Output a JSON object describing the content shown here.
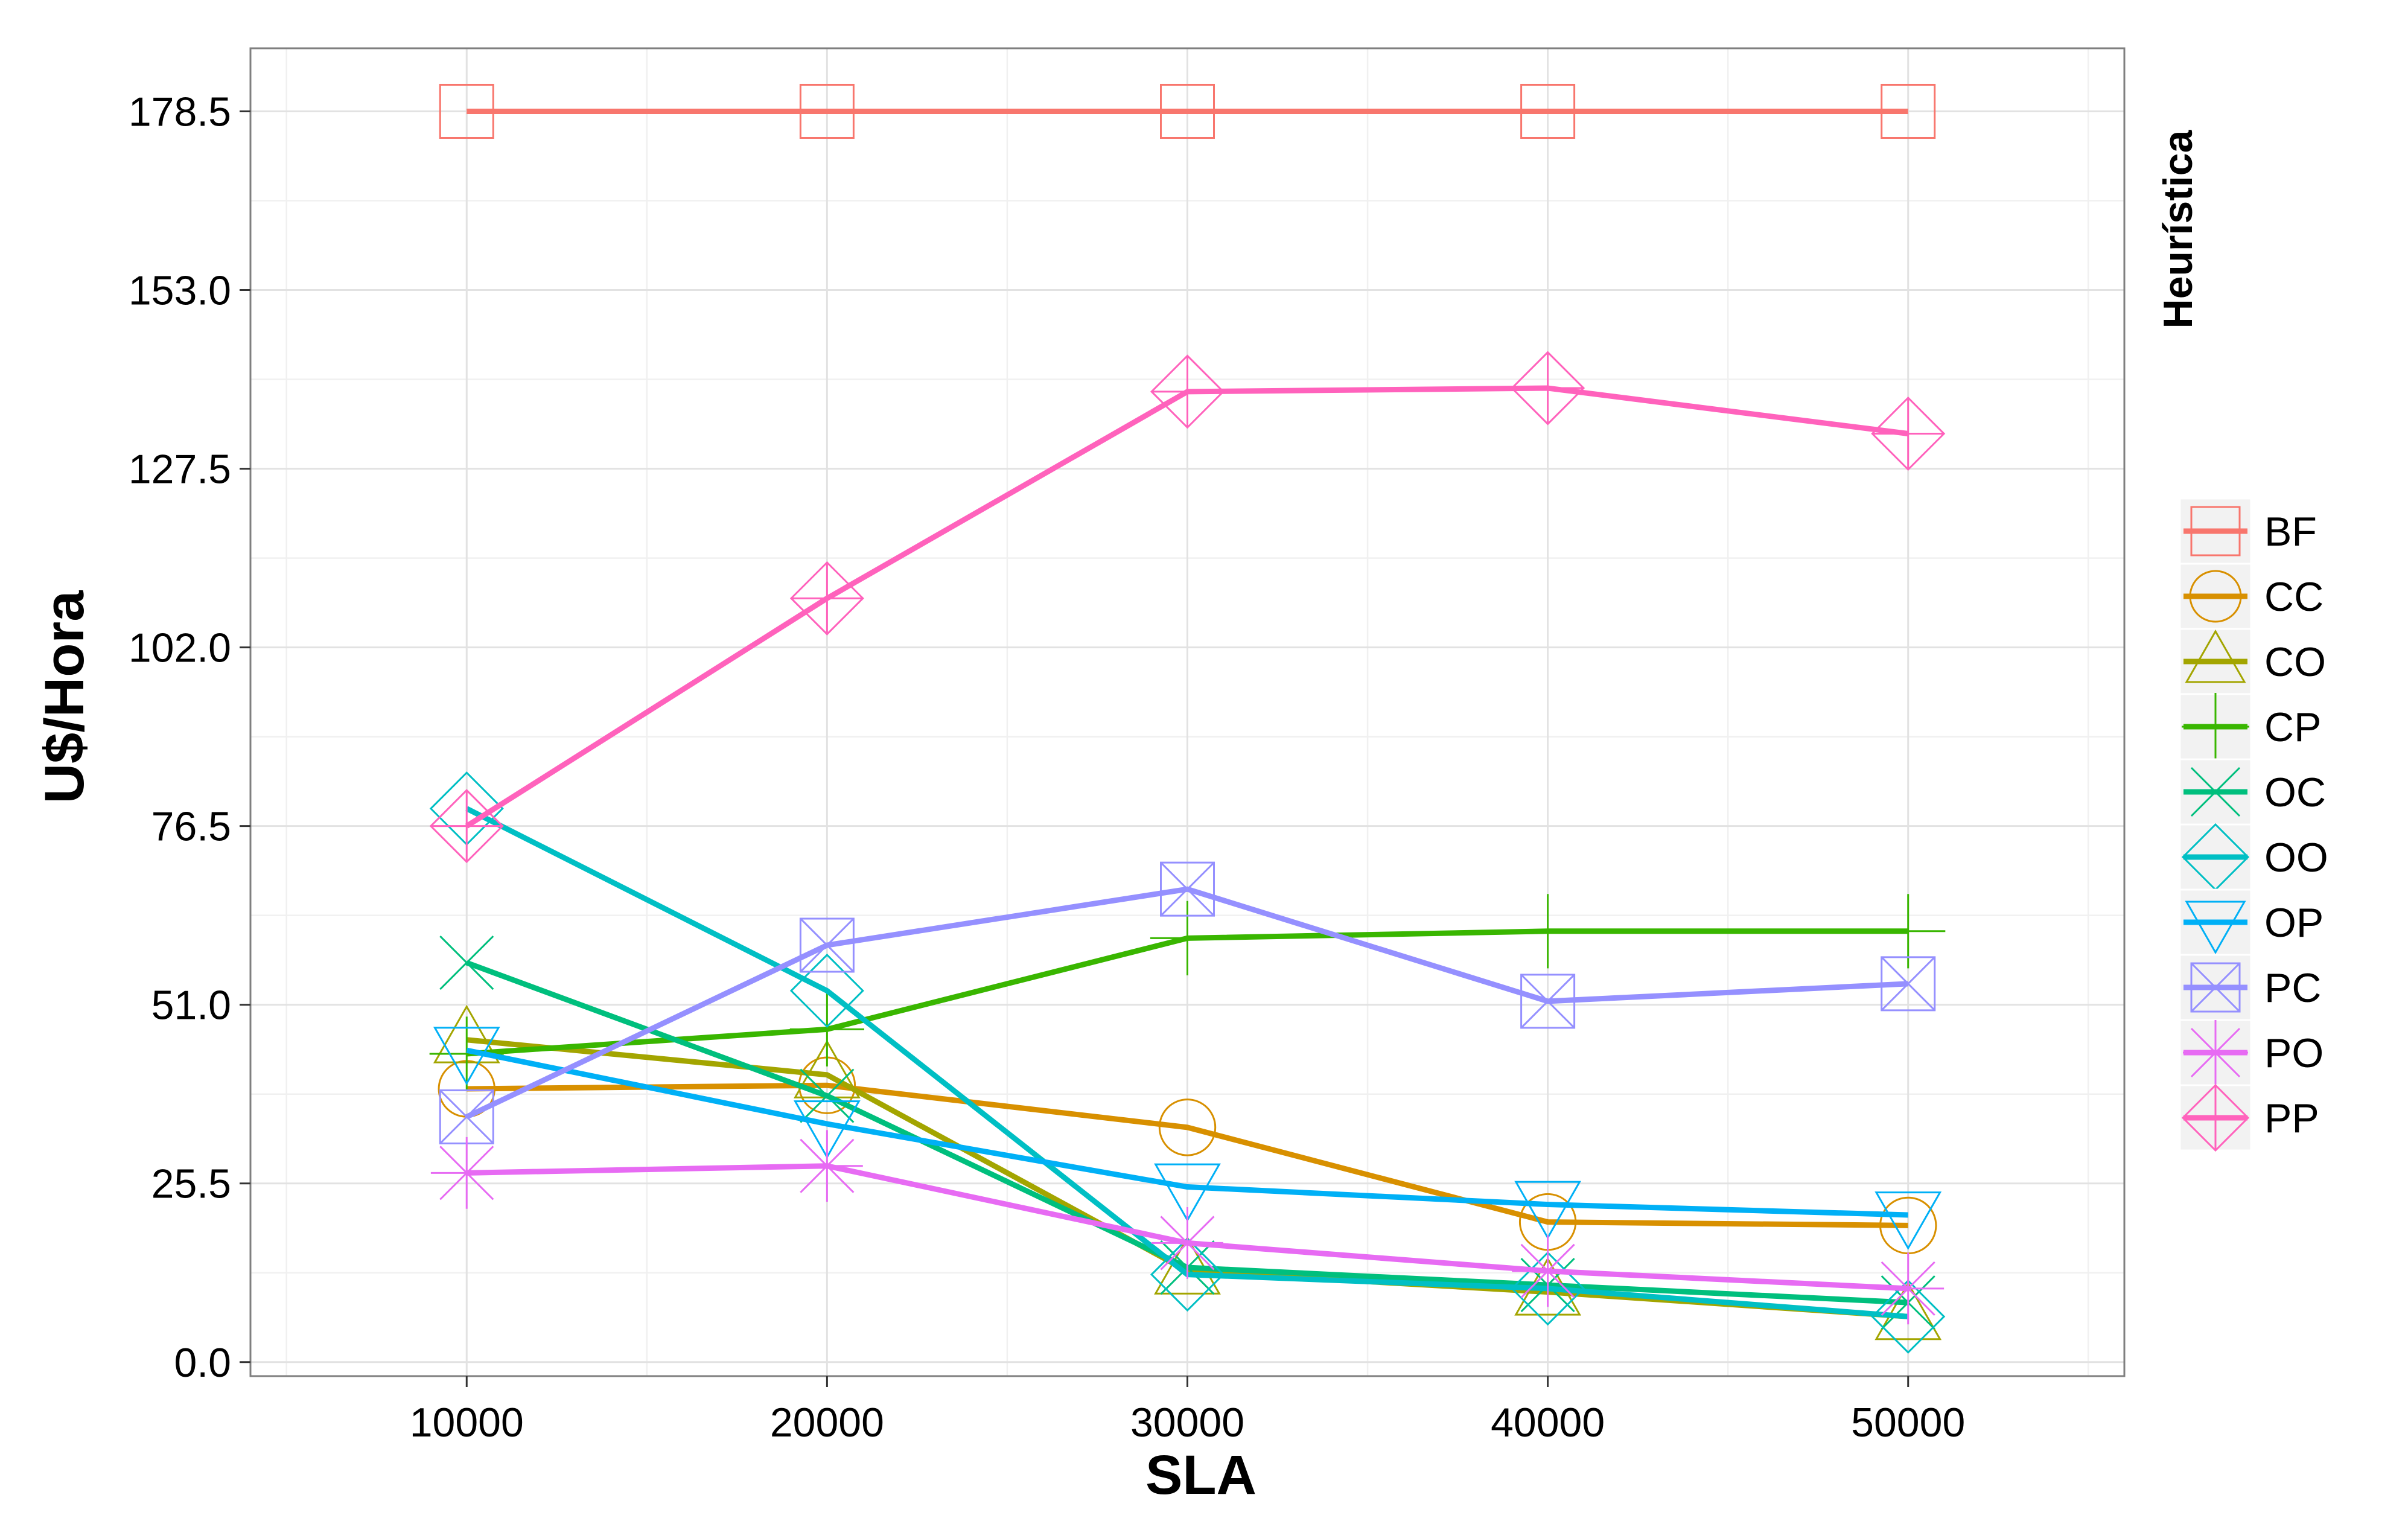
{
  "chart_data": {
    "type": "line",
    "xlabel": "SLA",
    "ylabel": "U$/Hora",
    "x": [
      10000,
      20000,
      30000,
      40000,
      50000
    ],
    "x_ticks": [
      "10000",
      "20000",
      "30000",
      "40000",
      "50000"
    ],
    "xlim": [
      4000,
      56000
    ],
    "y_ticks": [
      "0.0",
      "25.5",
      "51.0",
      "76.5",
      "102.0",
      "127.5",
      "153.0",
      "178.5"
    ],
    "ylim": [
      -2,
      187.5
    ],
    "grid": true,
    "legend": {
      "title": "Heurística",
      "placement": "right"
    },
    "series": [
      {
        "name": "BF",
        "color": "#F8766D",
        "marker": "square",
        "values": [
          178.5,
          178.5,
          178.5,
          178.5,
          178.5
        ]
      },
      {
        "name": "CC",
        "color": "#D89000",
        "marker": "circle",
        "values": [
          39.0,
          39.5,
          33.5,
          20.0,
          19.5
        ]
      },
      {
        "name": "CO",
        "color": "#A3A500",
        "marker": "triangle",
        "values": [
          46.0,
          41.0,
          13.0,
          10.0,
          6.5
        ]
      },
      {
        "name": "CP",
        "color": "#39B600",
        "marker": "plus",
        "values": [
          44.0,
          47.5,
          60.5,
          61.5,
          61.5
        ]
      },
      {
        "name": "OC",
        "color": "#00BF7D",
        "marker": "cross",
        "values": [
          57.0,
          38.0,
          13.5,
          11.0,
          8.5
        ]
      },
      {
        "name": "OO",
        "color": "#00BFC4",
        "marker": "diamond",
        "values": [
          79.0,
          53.0,
          12.5,
          10.5,
          6.5
        ]
      },
      {
        "name": "OP",
        "color": "#00B0F6",
        "marker": "triangle-down",
        "values": [
          44.5,
          34.0,
          25.0,
          22.5,
          21.0
        ]
      },
      {
        "name": "PC",
        "color": "#9590FF",
        "marker": "square-cross",
        "values": [
          35.0,
          59.5,
          67.5,
          51.5,
          54.0
        ]
      },
      {
        "name": "PO",
        "color": "#E76BF3",
        "marker": "asterisk",
        "values": [
          27.0,
          28.0,
          17.0,
          13.0,
          10.5
        ]
      },
      {
        "name": "PP",
        "color": "#FF62BC",
        "marker": "diamond-plus",
        "values": [
          76.5,
          109.0,
          138.5,
          139.0,
          132.5
        ]
      }
    ]
  }
}
